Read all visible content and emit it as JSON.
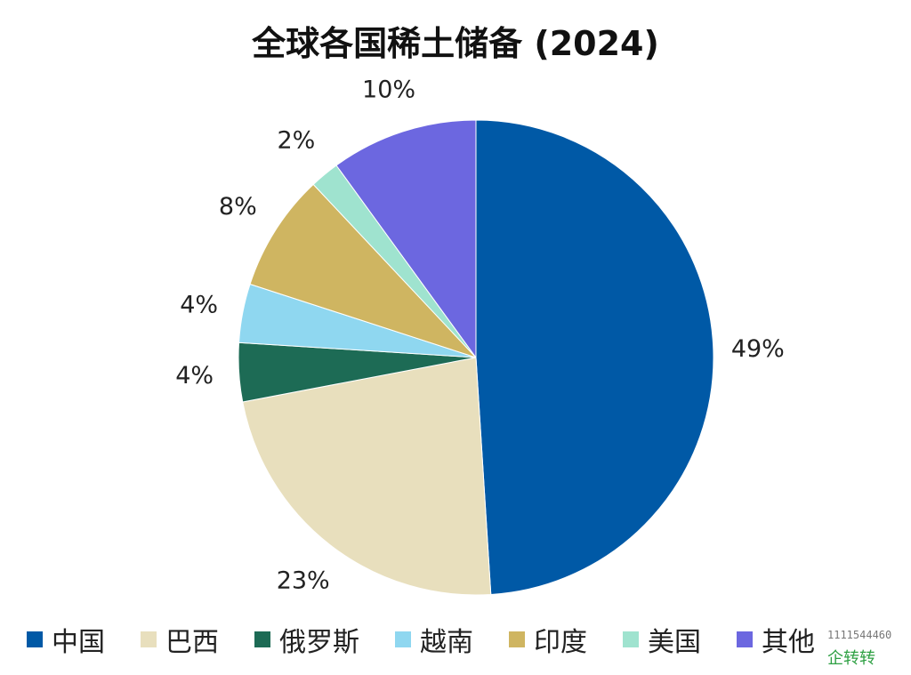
{
  "chart_data": {
    "type": "pie",
    "title": "全球各国稀土储备 (2024)",
    "slices": [
      {
        "label": "中国",
        "value": 49,
        "value_label": "49%",
        "color": "#0059a6"
      },
      {
        "label": "巴西",
        "value": 23,
        "value_label": "23%",
        "color": "#e8dfbd"
      },
      {
        "label": "俄罗斯",
        "value": 4,
        "value_label": "4%",
        "color": "#1d6b55"
      },
      {
        "label": "越南",
        "value": 4,
        "value_label": "4%",
        "color": "#8fd7f0"
      },
      {
        "label": "印度",
        "value": 8,
        "value_label": "8%",
        "color": "#cfb561"
      },
      {
        "label": "美国",
        "value": 2,
        "value_label": "2%",
        "color": "#9fe3cf"
      },
      {
        "label": "其他",
        "value": 10,
        "value_label": "10%",
        "color": "#6c67e0"
      }
    ],
    "legend_position": "bottom",
    "start": "12 o'clock, clockwise"
  },
  "watermark": {
    "number": "1111544460",
    "mark": "企转转"
  }
}
